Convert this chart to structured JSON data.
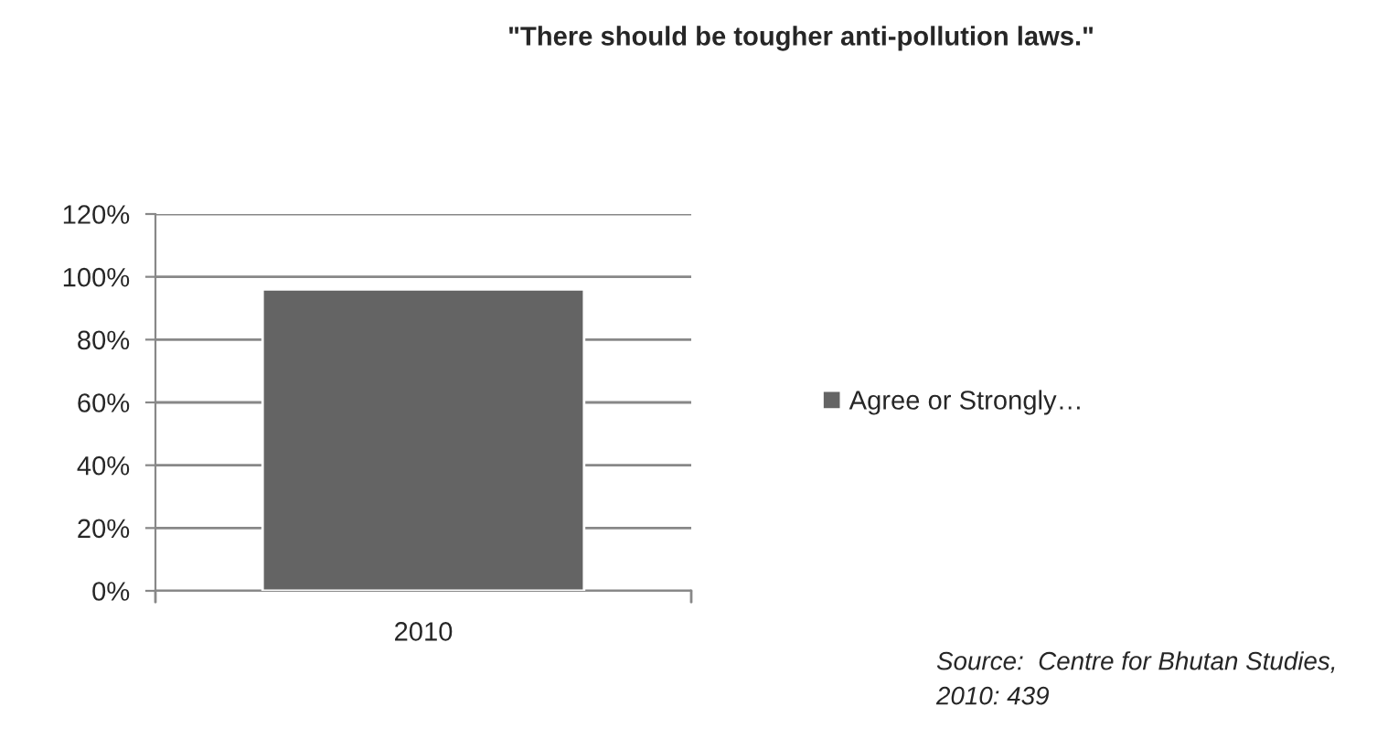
{
  "chart_data": {
    "type": "bar",
    "title": "\"There should be tougher anti-pollution laws.\"",
    "categories": [
      "2010"
    ],
    "series": [
      {
        "name": "Agree or Strongly…",
        "color": "#646464",
        "values": [
          96
        ]
      }
    ],
    "ylim": [
      0,
      120
    ],
    "yticks": [
      {
        "value": 0,
        "label": "0%"
      },
      {
        "value": 20,
        "label": "20%"
      },
      {
        "value": 40,
        "label": "40%"
      },
      {
        "value": 60,
        "label": "60%"
      },
      {
        "value": 80,
        "label": "80%"
      },
      {
        "value": 100,
        "label": "100%"
      },
      {
        "value": 120,
        "label": "120%"
      }
    ],
    "grid": "y",
    "legend": "right",
    "annotations": [
      "Source:  Centre for Bhutan Studies,\n2010: 439"
    ]
  }
}
